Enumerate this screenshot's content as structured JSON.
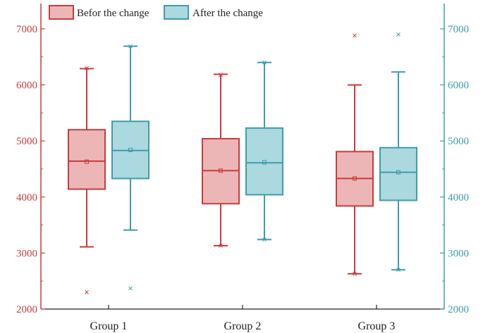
{
  "chart_data": {
    "type": "boxplot",
    "title": "",
    "xlabel": "",
    "ylabel": "",
    "ylim": [
      2000,
      7500
    ],
    "yticks": [
      2000,
      3000,
      4000,
      5000,
      6000,
      7000
    ],
    "ytick_labels": [
      "2000",
      "3000",
      "4000",
      "5000",
      "6000",
      "7000"
    ],
    "y2ticks": [
      2000,
      3000,
      4000,
      5000,
      6000,
      7000
    ],
    "y2tick_labels": [
      "2000",
      "3000",
      "4000",
      "5000",
      "6000",
      "7000"
    ],
    "categories": [
      "Group 1",
      "Group 2",
      "Group 3"
    ],
    "legend_position": "top-left",
    "grid": false,
    "series": [
      {
        "name": "Befor the change",
        "stroke": "#c83c3c",
        "fill": "#edb6b6",
        "boxes": [
          {
            "whisker_low": 3110,
            "q1": 4140,
            "median": 4640,
            "q3": 5200,
            "whisker_high": 6290,
            "mean": 4630,
            "outliers": [
              2300,
              6300
            ]
          },
          {
            "whisker_low": 3130,
            "q1": 3880,
            "median": 4470,
            "q3": 5040,
            "whisker_high": 6190,
            "mean": 4470,
            "outliers": [
              3130,
              6180
            ]
          },
          {
            "whisker_low": 2630,
            "q1": 3840,
            "median": 4330,
            "q3": 4810,
            "whisker_high": 6000,
            "mean": 4330,
            "outliers": [
              6880,
              2630
            ]
          }
        ]
      },
      {
        "name": "After the change",
        "stroke": "#3d9dab",
        "fill": "#acd8df",
        "boxes": [
          {
            "whisker_low": 3410,
            "q1": 4330,
            "median": 4830,
            "q3": 5350,
            "whisker_high": 6690,
            "mean": 4840,
            "outliers": [
              2370,
              6690
            ]
          },
          {
            "whisker_low": 3240,
            "q1": 4040,
            "median": 4610,
            "q3": 5230,
            "whisker_high": 6400,
            "mean": 4620,
            "outliers": [
              3240,
              6400
            ]
          },
          {
            "whisker_low": 2700,
            "q1": 3940,
            "median": 4440,
            "q3": 4880,
            "whisker_high": 6230,
            "mean": 4440,
            "outliers": [
              6900,
              2700
            ]
          }
        ]
      }
    ]
  }
}
